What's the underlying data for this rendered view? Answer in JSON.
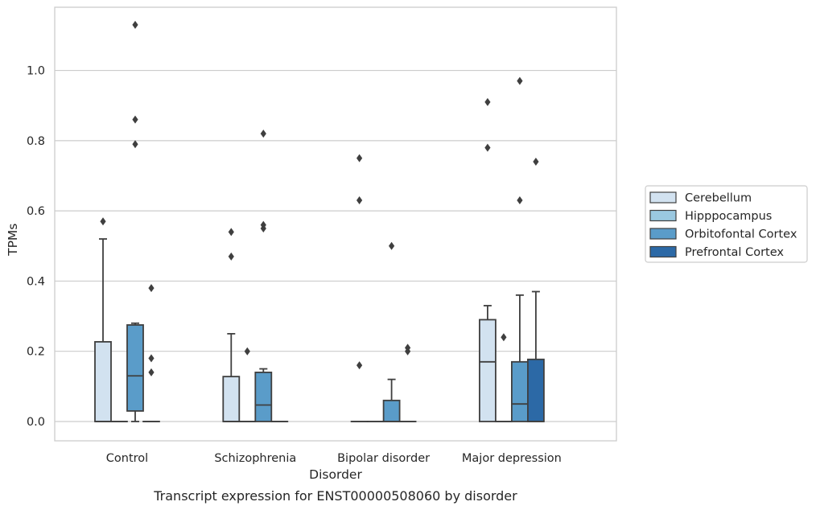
{
  "chart_data": {
    "type": "box",
    "title": "",
    "caption": "Transcript expression for ENST00000508060 by disorder",
    "xlabel": "Disorder",
    "ylabel": "TPMs",
    "categories": [
      "Control",
      "Schizophrenia",
      "Bipolar disorder",
      "Major depression"
    ],
    "ylim": [
      -0.055,
      1.18
    ],
    "yticks": [
      0.0,
      0.2,
      0.4,
      0.6,
      0.8,
      1.0
    ],
    "ytick_labels": [
      "0.0",
      "0.2",
      "0.4",
      "0.6",
      "0.8",
      "1.0"
    ],
    "grid": "horizontal",
    "legend_position": "right",
    "series": [
      {
        "name": "Cerebellum",
        "color": "#d2e2f0",
        "boxes": [
          {
            "q1": 0.0,
            "median": 0.0,
            "q3": 0.227,
            "whislo": 0.0,
            "whishi": 0.52,
            "fliers": [
              0.57
            ]
          },
          {
            "q1": 0.0,
            "median": 0.0,
            "q3": 0.128,
            "whislo": 0.0,
            "whishi": 0.25,
            "fliers": [
              0.47,
              0.54
            ]
          },
          {
            "q1": 0.0,
            "median": 0.0,
            "q3": 0.0,
            "whislo": 0.0,
            "whishi": 0.0,
            "fliers": [
              0.16,
              0.63,
              0.75
            ]
          },
          {
            "q1": 0.0,
            "median": 0.17,
            "q3": 0.29,
            "whislo": 0.0,
            "whishi": 0.33,
            "fliers": [
              0.78,
              0.91
            ]
          }
        ]
      },
      {
        "name": "Hipppocampus",
        "color": "#9ac8e0",
        "boxes": [
          {
            "q1": 0.0,
            "median": 0.0,
            "q3": 0.0,
            "whislo": 0.0,
            "whishi": 0.0,
            "fliers": []
          },
          {
            "q1": 0.0,
            "median": 0.0,
            "q3": 0.0,
            "whislo": 0.0,
            "whishi": 0.0,
            "fliers": [
              0.2
            ]
          },
          {
            "q1": 0.0,
            "median": 0.0,
            "q3": 0.0,
            "whislo": 0.0,
            "whishi": 0.0,
            "fliers": []
          },
          {
            "q1": 0.0,
            "median": 0.0,
            "q3": 0.0,
            "whislo": 0.0,
            "whishi": 0.0,
            "fliers": [
              0.24
            ]
          }
        ]
      },
      {
        "name": "Orbitofontal Cortex",
        "color": "#5a9cc9",
        "boxes": [
          {
            "q1": 0.03,
            "median": 0.13,
            "q3": 0.275,
            "whislo": 0.0,
            "whishi": 0.28,
            "fliers": [
              0.79,
              0.86,
              1.13
            ]
          },
          {
            "q1": 0.0,
            "median": 0.047,
            "q3": 0.14,
            "whislo": 0.0,
            "whishi": 0.15,
            "fliers": [
              0.55,
              0.56,
              0.82
            ]
          },
          {
            "q1": 0.0,
            "median": 0.0,
            "q3": 0.06,
            "whislo": 0.0,
            "whishi": 0.12,
            "fliers": [
              0.5
            ]
          },
          {
            "q1": 0.0,
            "median": 0.05,
            "q3": 0.17,
            "whislo": 0.0,
            "whishi": 0.36,
            "fliers": [
              0.63,
              0.97
            ]
          }
        ]
      },
      {
        "name": "Prefrontal Cortex",
        "color": "#2c69a6",
        "boxes": [
          {
            "q1": 0.0,
            "median": 0.0,
            "q3": 0.0,
            "whislo": 0.0,
            "whishi": 0.0,
            "fliers": [
              0.14,
              0.18,
              0.38
            ]
          },
          {
            "q1": 0.0,
            "median": 0.0,
            "q3": 0.0,
            "whislo": 0.0,
            "whishi": 0.0,
            "fliers": []
          },
          {
            "q1": 0.0,
            "median": 0.0,
            "q3": 0.0,
            "whislo": 0.0,
            "whishi": 0.0,
            "fliers": [
              0.2,
              0.21
            ]
          },
          {
            "q1": 0.0,
            "median": 0.0,
            "q3": 0.177,
            "whislo": 0.0,
            "whishi": 0.37,
            "fliers": [
              0.74
            ]
          }
        ]
      }
    ]
  }
}
